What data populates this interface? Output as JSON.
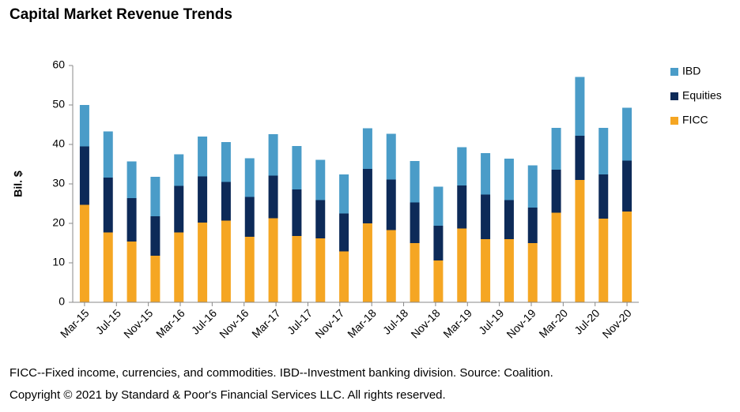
{
  "chart_data": {
    "type": "stacked_bar",
    "title": "Capital Market Revenue Trends",
    "y_label": "Bil. $",
    "categories": [
      null,
      null,
      null,
      null,
      null,
      null,
      null,
      null,
      null,
      null,
      null,
      null,
      null,
      null,
      null,
      null,
      null,
      null,
      null,
      null,
      null,
      null,
      null,
      null
    ],
    "x_tick_labels": [
      "Mar-15",
      "Jul-15",
      "Nov-15",
      "Mar-16",
      "Jul-16",
      "Nov-16",
      "Mar-17",
      "Jul-17",
      "Nov-17",
      "Mar-18",
      "Jul-18",
      "Nov-18",
      "Mar-19",
      "Jul-19",
      "Nov-19",
      "Mar-20",
      "Jul-20",
      "Nov-20"
    ],
    "series": [
      {
        "name": "FICC",
        "color": "#f5a623",
        "values": [
          24.7,
          17.7,
          15.4,
          11.8,
          17.7,
          20.2,
          20.7,
          16.6,
          21.3,
          16.8,
          16.2,
          12.9,
          20.0,
          18.3,
          15.0,
          10.6,
          18.7,
          16.0,
          16.0,
          15.0,
          22.7,
          31.0,
          21.2,
          23.0
        ]
      },
      {
        "name": "Equities",
        "color": "#0d2a58",
        "values": [
          14.8,
          13.9,
          11.0,
          10.0,
          11.8,
          11.7,
          9.8,
          10.1,
          10.8,
          11.8,
          9.7,
          9.6,
          13.8,
          12.8,
          10.3,
          8.8,
          10.9,
          11.3,
          9.9,
          9.0,
          10.9,
          11.2,
          11.2,
          12.9
        ]
      },
      {
        "name": "IBD",
        "color": "#4a9cc8",
        "values": [
          10.5,
          11.7,
          9.3,
          10.0,
          8.0,
          10.1,
          10.1,
          9.8,
          10.5,
          11.0,
          10.2,
          9.9,
          10.3,
          11.6,
          10.5,
          9.9,
          9.7,
          10.5,
          10.5,
          10.7,
          10.6,
          14.9,
          11.8,
          13.4
        ]
      }
    ],
    "ylim": [
      0,
      60
    ],
    "yticks": [
      0,
      10,
      20,
      30,
      40,
      50,
      60
    ],
    "grid": false,
    "legend": "right",
    "footnotes": [
      "FICC--Fixed income, currencies, and commodities. IBD--Investment banking division. Source: Coalition.",
      "Copyright © 2021 by Standard & Poor's Financial Services LLC. All rights reserved."
    ]
  }
}
